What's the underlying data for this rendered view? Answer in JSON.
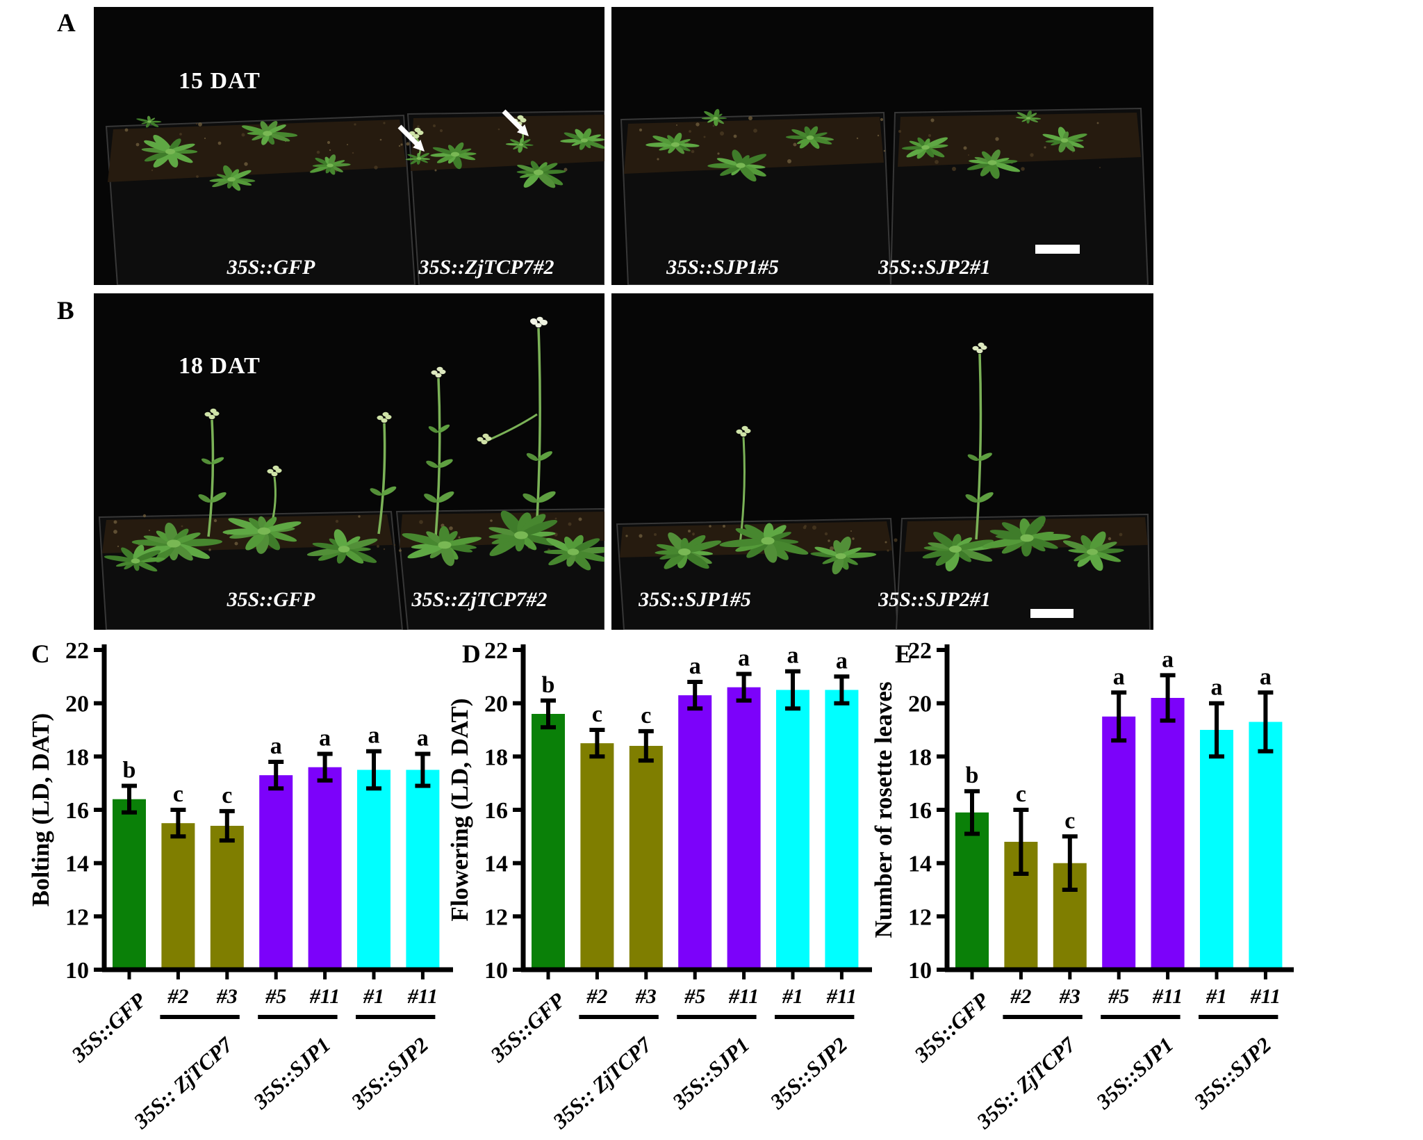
{
  "figure": {
    "panels": {
      "A": {
        "letter": "A",
        "timepoint": "15 DAT",
        "pot_labels": [
          "35S::GFP",
          "35S::ZjTCP7#2",
          "35S::SJP1#5",
          "35S::SJP2#1"
        ]
      },
      "B": {
        "letter": "B",
        "timepoint": "18 DAT",
        "pot_labels": [
          "35S::GFP",
          "35S::ZjTCP7#2",
          "35S::SJP1#5",
          "35S::SJP2#1"
        ]
      }
    }
  },
  "colors": {
    "green": "#0a8008",
    "olive": "#7f7e00",
    "purple": "#7c02fa",
    "cyan": "#00ffff",
    "error_bar": "#000000",
    "photo_background": "#060606",
    "photo_label": "#ffffff"
  },
  "chart_data": [
    {
      "panel": "C",
      "type": "bar",
      "ylabel": "Bolting  (LD, DAT)",
      "ylim": [
        10,
        22
      ],
      "yticks": [
        10,
        12,
        14,
        16,
        18,
        20,
        22
      ],
      "tick_labels": [
        "",
        "#2",
        "#3",
        "#5",
        "#11",
        "#1",
        "#11"
      ],
      "values": [
        16.4,
        15.5,
        15.4,
        17.3,
        17.6,
        17.5,
        17.5
      ],
      "errors": [
        0.5,
        0.5,
        0.55,
        0.5,
        0.5,
        0.7,
        0.6
      ],
      "sig_letters": [
        "b",
        "c",
        "c",
        "a",
        "a",
        "a",
        "a"
      ],
      "bar_color_keys": [
        "green",
        "olive",
        "olive",
        "purple",
        "purple",
        "cyan",
        "cyan"
      ],
      "groups": [
        {
          "label": "35S::GFP",
          "from": 0,
          "to": 0,
          "underline": false
        },
        {
          "label": "35S:: ZjTCP7",
          "from": 1,
          "to": 2,
          "underline": true
        },
        {
          "label": "35S::SJP1",
          "from": 3,
          "to": 4,
          "underline": true
        },
        {
          "label": "35S::SJP2",
          "from": 5,
          "to": 6,
          "underline": true
        }
      ]
    },
    {
      "panel": "D",
      "type": "bar",
      "ylabel": "Flowering (LD, DAT)",
      "ylim": [
        10,
        22
      ],
      "yticks": [
        10,
        12,
        14,
        16,
        18,
        20,
        22
      ],
      "tick_labels": [
        "",
        "#2",
        "#3",
        "#5",
        "#11",
        "#1",
        "#11"
      ],
      "values": [
        19.6,
        18.5,
        18.4,
        20.3,
        20.6,
        20.5,
        20.5
      ],
      "errors": [
        0.5,
        0.5,
        0.55,
        0.5,
        0.5,
        0.7,
        0.5
      ],
      "sig_letters": [
        "b",
        "c",
        "c",
        "a",
        "a",
        "a",
        "a"
      ],
      "bar_color_keys": [
        "green",
        "olive",
        "olive",
        "purple",
        "purple",
        "cyan",
        "cyan"
      ],
      "groups": [
        {
          "label": "35S::GFP",
          "from": 0,
          "to": 0,
          "underline": false
        },
        {
          "label": "35S:: ZjTCP7",
          "from": 1,
          "to": 2,
          "underline": true
        },
        {
          "label": "35S::SJP1",
          "from": 3,
          "to": 4,
          "underline": true
        },
        {
          "label": "35S::SJP2",
          "from": 5,
          "to": 6,
          "underline": true
        }
      ]
    },
    {
      "panel": "E",
      "type": "bar",
      "ylabel": "Number of rosette leaves",
      "ylim": [
        10,
        22
      ],
      "yticks": [
        10,
        12,
        14,
        16,
        18,
        20,
        22
      ],
      "tick_labels": [
        "",
        "#2",
        "#3",
        "#5",
        "#11",
        "#1",
        "#11"
      ],
      "values": [
        15.9,
        14.8,
        14.0,
        19.5,
        20.2,
        19.0,
        19.3
      ],
      "errors": [
        0.8,
        1.2,
        1.0,
        0.9,
        0.85,
        1.0,
        1.1
      ],
      "sig_letters": [
        "b",
        "c",
        "c",
        "a",
        "a",
        "a",
        "a"
      ],
      "bar_color_keys": [
        "green",
        "olive",
        "olive",
        "purple",
        "purple",
        "cyan",
        "cyan"
      ],
      "groups": [
        {
          "label": "35S::GFP",
          "from": 0,
          "to": 0,
          "underline": false
        },
        {
          "label": "35S:: ZjTCP7",
          "from": 1,
          "to": 2,
          "underline": true
        },
        {
          "label": "35S::SJP1",
          "from": 3,
          "to": 4,
          "underline": true
        },
        {
          "label": "35S::SJP2",
          "from": 5,
          "to": 6,
          "underline": true
        }
      ]
    }
  ]
}
